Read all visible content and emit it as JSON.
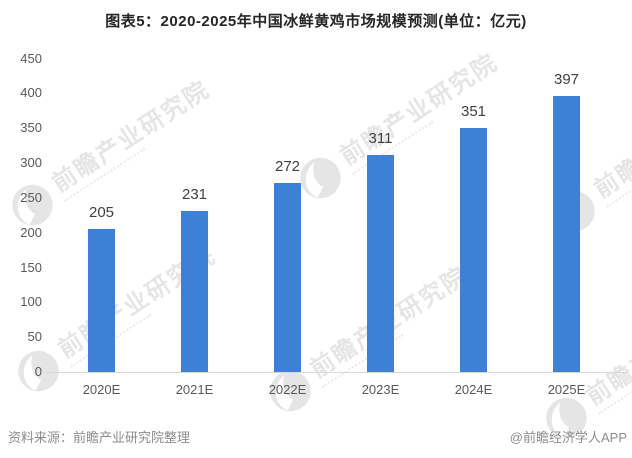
{
  "title": "图表5：2020-2025年中国冰鲜黄鸡市场规模预测(单位：亿元)",
  "chart_data": {
    "type": "bar",
    "title": "图表5：2020-2025年中国冰鲜黄鸡市场规模预测(单位：亿元)",
    "unit_label": "亿元",
    "categories": [
      "2020E",
      "2021E",
      "2022E",
      "2023E",
      "2024E",
      "2025E"
    ],
    "values": [
      205,
      231,
      272,
      311,
      351,
      397
    ],
    "yticks": [
      0,
      50,
      100,
      150,
      200,
      250,
      300,
      350,
      400,
      450
    ],
    "ylim": [
      0,
      450
    ],
    "grid": false,
    "legend": "none",
    "bar_color": "#3E80D5"
  },
  "watermark": {
    "text": "前瞻产业研究院",
    "color": "rgba(0,0,0,0.10)"
  },
  "footer": {
    "source": "资料来源：前瞻产业研究院整理",
    "credit": "@前瞻经济学人APP"
  },
  "colors": {
    "background": "#FFFFFF",
    "bar": "#3E80D5",
    "axis_line": "#D9D9D9",
    "title_text": "#262626",
    "value_label_text": "#404040",
    "tick_text": "#595959",
    "footer_text": "#8C8C8C"
  }
}
